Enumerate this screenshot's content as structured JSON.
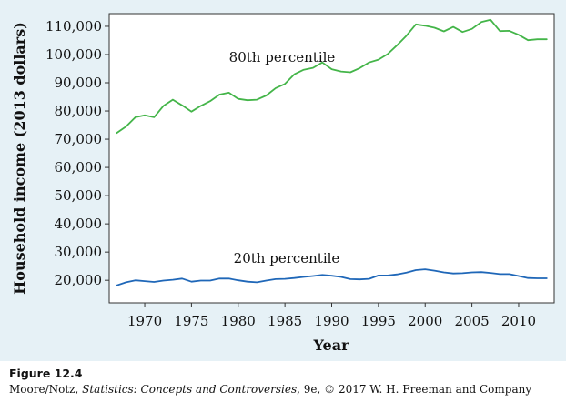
{
  "chart_data": {
    "type": "line",
    "title": "",
    "xlabel": "Year",
    "ylabel": "Household income (2013 dollars)",
    "xlim": [
      1966.2,
      2013.8
    ],
    "ylim": [
      12000,
      114500
    ],
    "x_ticks": [
      1970,
      1975,
      1980,
      1985,
      1990,
      1995,
      2000,
      2005,
      2010
    ],
    "x_tick_labels": [
      "1970",
      "1975",
      "1980",
      "1985",
      "1990",
      "1995",
      "2000",
      "2005",
      "2010"
    ],
    "y_ticks": [
      20000,
      30000,
      40000,
      50000,
      60000,
      70000,
      80000,
      90000,
      100000,
      110000
    ],
    "y_tick_labels": [
      "20,000",
      "30,000",
      "40,000",
      "50,000",
      "60,000",
      "70,000",
      "80,000",
      "90,000",
      "100,000",
      "110,000"
    ],
    "grid": false,
    "legend": "none",
    "x": [
      1967,
      1968,
      1969,
      1970,
      1971,
      1972,
      1973,
      1974,
      1975,
      1976,
      1977,
      1978,
      1979,
      1980,
      1981,
      1982,
      1983,
      1984,
      1985,
      1986,
      1987,
      1988,
      1989,
      1990,
      1991,
      1992,
      1993,
      1994,
      1995,
      1996,
      1997,
      1998,
      1999,
      2000,
      2001,
      2002,
      2003,
      2004,
      2005,
      2006,
      2007,
      2008,
      2009,
      2010,
      2011,
      2012,
      2013
    ],
    "series": [
      {
        "name": "80th percentile",
        "color": "#44b549",
        "values": [
          72200,
          74500,
          77800,
          78500,
          77800,
          81800,
          84000,
          82000,
          79800,
          81800,
          83500,
          85800,
          86500,
          84300,
          83800,
          84000,
          85500,
          88100,
          89600,
          93000,
          94600,
          95300,
          97200,
          94800,
          94000,
          93700,
          95200,
          97200,
          98200,
          100200,
          103300,
          106700,
          110700,
          110200,
          109500,
          108200,
          109800,
          108000,
          109100,
          111500,
          112300,
          108300,
          108400,
          107000,
          105100,
          105400,
          105400
        ]
      },
      {
        "name": "20th percentile",
        "color": "#1f67b8",
        "values": [
          18200,
          19300,
          20000,
          19700,
          19400,
          19900,
          20200,
          20600,
          19500,
          19900,
          19900,
          20600,
          20600,
          20000,
          19500,
          19300,
          19900,
          20400,
          20500,
          20800,
          21200,
          21500,
          21900,
          21600,
          21200,
          20400,
          20300,
          20500,
          21700,
          21700,
          22100,
          22700,
          23600,
          23900,
          23400,
          22800,
          22400,
          22500,
          22800,
          22900,
          22600,
          22200,
          22200,
          21500,
          20800,
          20700,
          20700
        ]
      }
    ]
  },
  "caption": {
    "figure_label": "Figure 12.4",
    "credit_authors": "Moore/Notz, ",
    "credit_title": "Statistics: Concepts and Controversies",
    "credit_rest": ", 9e, © 2017 W. H. Freeman and Company"
  }
}
